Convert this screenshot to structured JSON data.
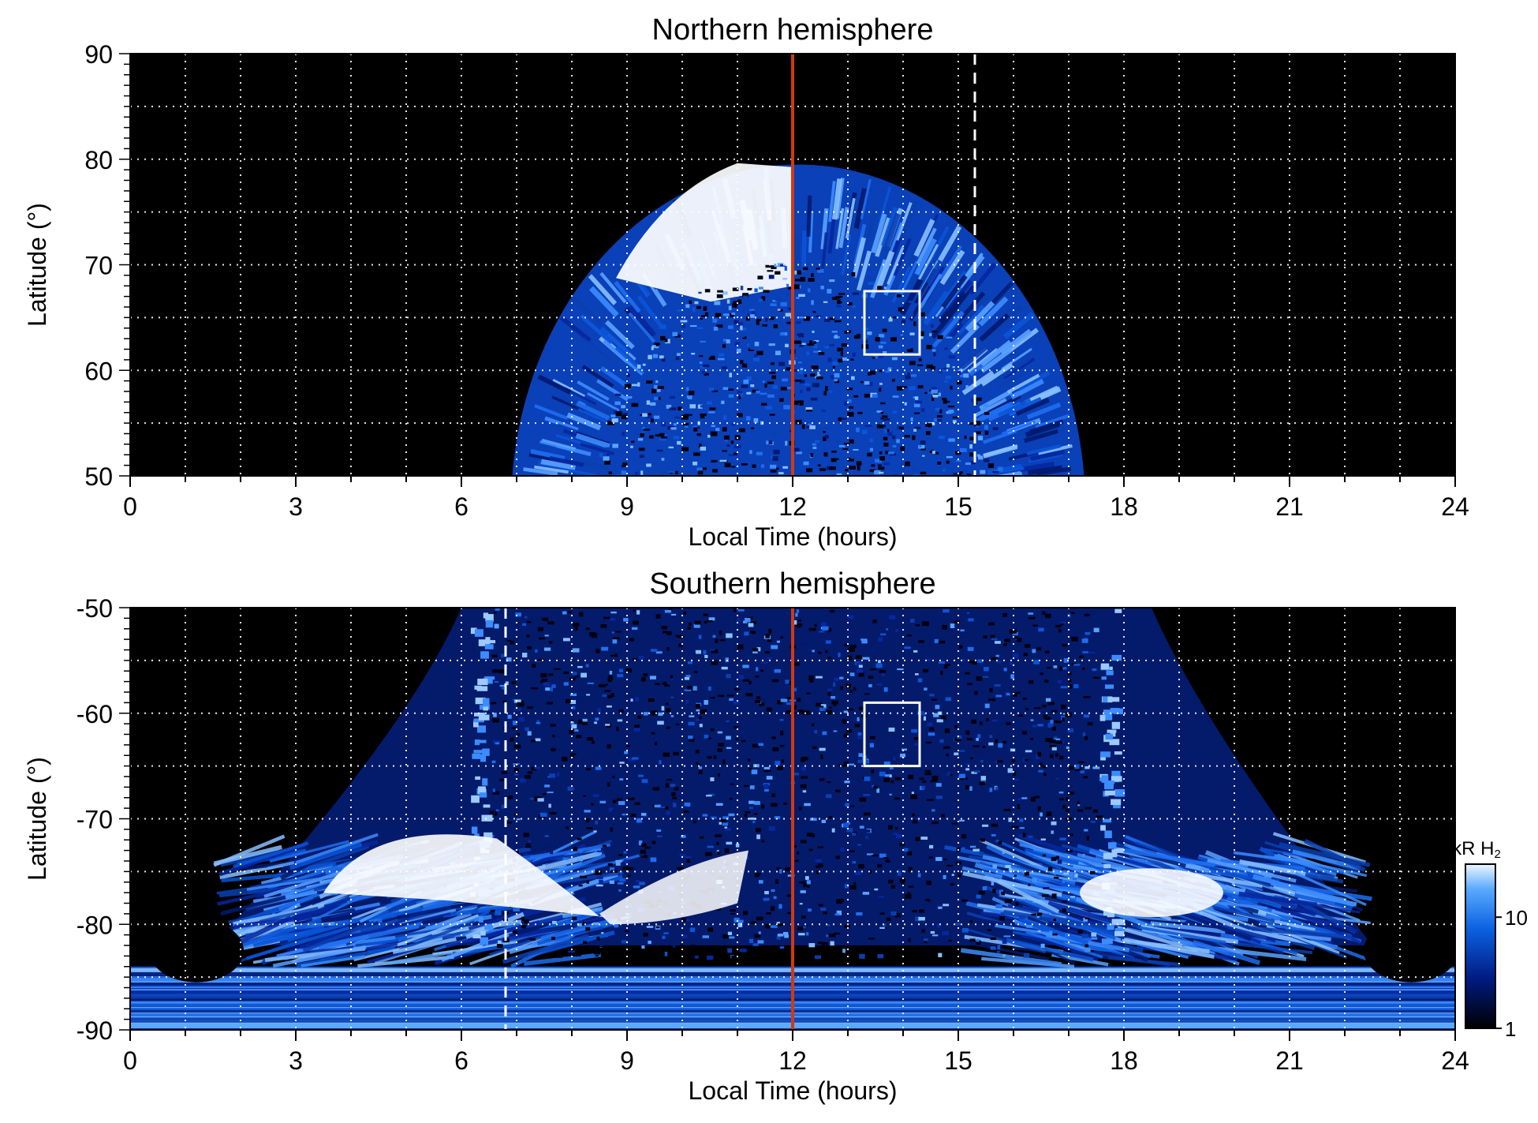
{
  "chart_data": [
    {
      "type": "heatmap",
      "title": "Northern hemisphere",
      "xlabel": "Local Time (hours)",
      "ylabel": "Latitude (°)",
      "xlim": [
        0,
        24
      ],
      "ylim": [
        50,
        90
      ],
      "x_ticks": [
        0,
        3,
        6,
        9,
        12,
        15,
        18,
        21,
        24
      ],
      "y_ticks": [
        50,
        60,
        70,
        80,
        90
      ],
      "grid": true,
      "noon_line_x": 12,
      "dashed_line_x": 15.3,
      "box": {
        "x": [
          13.3,
          14.3
        ],
        "y": [
          61.5,
          67.5
        ]
      },
      "emission_region": {
        "lt_range": [
          7,
          17.2
        ],
        "lat_edge": 50,
        "lat_top": 80
      },
      "bright_region": {
        "lt_range": [
          8.8,
          12
        ],
        "lat_range": [
          68,
          80
        ]
      }
    },
    {
      "type": "heatmap",
      "title": "Southern hemisphere",
      "xlabel": "Local Time (hours)",
      "ylabel": "Latitude (°)",
      "xlim": [
        0,
        24
      ],
      "ylim": [
        -90,
        -50
      ],
      "x_ticks": [
        0,
        3,
        6,
        9,
        12,
        15,
        18,
        21,
        24
      ],
      "y_ticks": [
        -90,
        -80,
        -70,
        -60,
        -50
      ],
      "grid": true,
      "noon_line_x": 12,
      "dashed_line_x": 6.8,
      "box": {
        "x": [
          13.3,
          14.3
        ],
        "y": [
          -65,
          -59
        ]
      },
      "bright_regions": [
        {
          "lt_range": [
            3.5,
            8.5
          ],
          "lat_range": [
            -80,
            -70
          ]
        },
        {
          "lt_range": [
            17.2,
            19.8
          ],
          "lat_range": [
            -80,
            -74
          ]
        }
      ],
      "colorbar": {
        "label": "kR H",
        "label_sub": "2",
        "scale": "log",
        "range": [
          1,
          30
        ],
        "ticks": [
          1,
          10
        ]
      }
    }
  ]
}
